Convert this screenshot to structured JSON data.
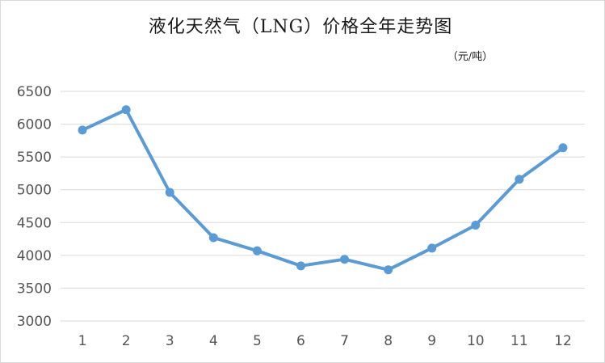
{
  "chart_data": {
    "type": "line",
    "title": "液化天然气（LNG）价格全年走势图",
    "unit_label": "（元/吨）",
    "xlabel": "",
    "ylabel": "",
    "categories": [
      "1",
      "2",
      "3",
      "4",
      "5",
      "6",
      "7",
      "8",
      "9",
      "10",
      "11",
      "12"
    ],
    "series": [
      {
        "values": [
          5910,
          6220,
          4960,
          4270,
          4070,
          3840,
          3940,
          3780,
          4110,
          4460,
          5160,
          5640
        ]
      }
    ],
    "ylim": [
      3000,
      6500
    ],
    "yticks": [
      "3000",
      "3500",
      "4000",
      "4500",
      "5000",
      "5500",
      "6000",
      "6500"
    ],
    "grid": true,
    "legend": "none",
    "colors": {
      "series": "#5b9bd5",
      "grid": "#d9d9d9",
      "text": "#595959"
    }
  }
}
